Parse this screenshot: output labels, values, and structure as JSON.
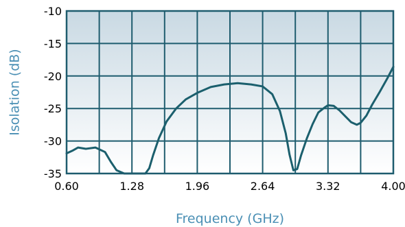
{
  "colors": {
    "grid": "#1e5c6e",
    "frame": "#1e5c6e",
    "curve": "#1b5f6d",
    "bg_top": "#c9d9e3",
    "bg_bottom": "#ffffff",
    "axis_title": "#4a8fb4"
  },
  "chart_data": {
    "type": "line",
    "title": "",
    "xlabel": "Frequency (GHz)",
    "ylabel": "Isolation (dB)",
    "xlim": [
      0.6,
      4.0
    ],
    "ylim": [
      -35,
      -10
    ],
    "x_ticks": [
      0.6,
      1.28,
      1.96,
      2.64,
      3.32,
      4.0
    ],
    "x_tick_labels": [
      "0.60",
      "1.28",
      "1.96",
      "2.64",
      "3.32",
      "4.00"
    ],
    "y_ticks": [
      -10,
      -15,
      -20,
      -25,
      -30,
      -35
    ],
    "y_tick_labels": [
      "-10",
      "-15",
      "-20",
      "-25",
      "-30",
      "-35"
    ],
    "x_grid_lines": [
      0.6,
      0.94,
      1.28,
      1.62,
      1.96,
      2.3,
      2.64,
      2.98,
      3.32,
      3.66,
      4.0
    ],
    "grid": true,
    "legend": "none",
    "series": [
      {
        "x": [
          0.6,
          0.66,
          0.72,
          0.8,
          0.9,
          1.0,
          1.06,
          1.12,
          1.2,
          1.26,
          1.32,
          1.42,
          1.46,
          1.5,
          1.56,
          1.64,
          1.74,
          1.84,
          1.96,
          2.1,
          2.24,
          2.38,
          2.52,
          2.64,
          2.74,
          2.82,
          2.88,
          2.92,
          2.96,
          3.0,
          3.04,
          3.1,
          3.16,
          3.22,
          3.28,
          3.32,
          3.38,
          3.44,
          3.5,
          3.56,
          3.62,
          3.66,
          3.72,
          3.78,
          3.86,
          3.94,
          4.0
        ],
        "y": [
          -31.9,
          -31.5,
          -31.0,
          -31.2,
          -31.0,
          -31.7,
          -33.2,
          -34.5,
          -35.0,
          -35.0,
          -35.0,
          -35.0,
          -34.2,
          -32.2,
          -29.6,
          -27.0,
          -25.0,
          -23.6,
          -22.6,
          -21.7,
          -21.3,
          -21.1,
          -21.3,
          -21.6,
          -22.8,
          -25.4,
          -28.8,
          -32.1,
          -34.5,
          -34.3,
          -32.2,
          -29.6,
          -27.4,
          -25.6,
          -24.9,
          -24.5,
          -24.6,
          -25.3,
          -26.2,
          -27.1,
          -27.5,
          -27.2,
          -26.1,
          -24.4,
          -22.4,
          -20.3,
          -18.6
        ]
      }
    ]
  }
}
